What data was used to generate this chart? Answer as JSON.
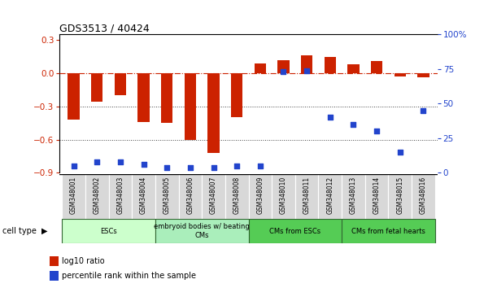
{
  "title": "GDS3513 / 40424",
  "samples": [
    "GSM348001",
    "GSM348002",
    "GSM348003",
    "GSM348004",
    "GSM348005",
    "GSM348006",
    "GSM348007",
    "GSM348008",
    "GSM348009",
    "GSM348010",
    "GSM348011",
    "GSM348012",
    "GSM348013",
    "GSM348014",
    "GSM348015",
    "GSM348016"
  ],
  "log10_ratio": [
    -0.42,
    -0.26,
    -0.2,
    -0.44,
    -0.45,
    -0.6,
    -0.72,
    -0.4,
    0.09,
    0.12,
    0.16,
    0.15,
    0.08,
    0.11,
    -0.03,
    -0.04
  ],
  "percentile_rank": [
    5,
    8,
    8,
    6,
    4,
    4,
    4,
    5,
    5,
    73,
    74,
    40,
    35,
    30,
    15,
    45
  ],
  "ylim_left": [
    -0.9,
    0.35
  ],
  "ylim_right": [
    0,
    100
  ],
  "yticks_left": [
    -0.9,
    -0.6,
    -0.3,
    0.0,
    0.3
  ],
  "yticks_right": [
    0,
    25,
    50,
    75,
    100
  ],
  "bar_color": "#CC2200",
  "dot_color": "#2244CC",
  "line_color_dash": "#CC2200",
  "grid_color": "#444444",
  "cell_types": [
    {
      "label": "ESCs",
      "start": 0,
      "end": 4,
      "color": "#ccffcc"
    },
    {
      "label": "embryoid bodies w/ beating\nCMs",
      "start": 4,
      "end": 8,
      "color": "#aaeebb"
    },
    {
      "label": "CMs from ESCs",
      "start": 8,
      "end": 12,
      "color": "#55cc55"
    },
    {
      "label": "CMs from fetal hearts",
      "start": 12,
      "end": 16,
      "color": "#55cc55"
    }
  ],
  "legend_bar_label": "log10 ratio",
  "legend_dot_label": "percentile rank within the sample",
  "bar_width": 0.5
}
